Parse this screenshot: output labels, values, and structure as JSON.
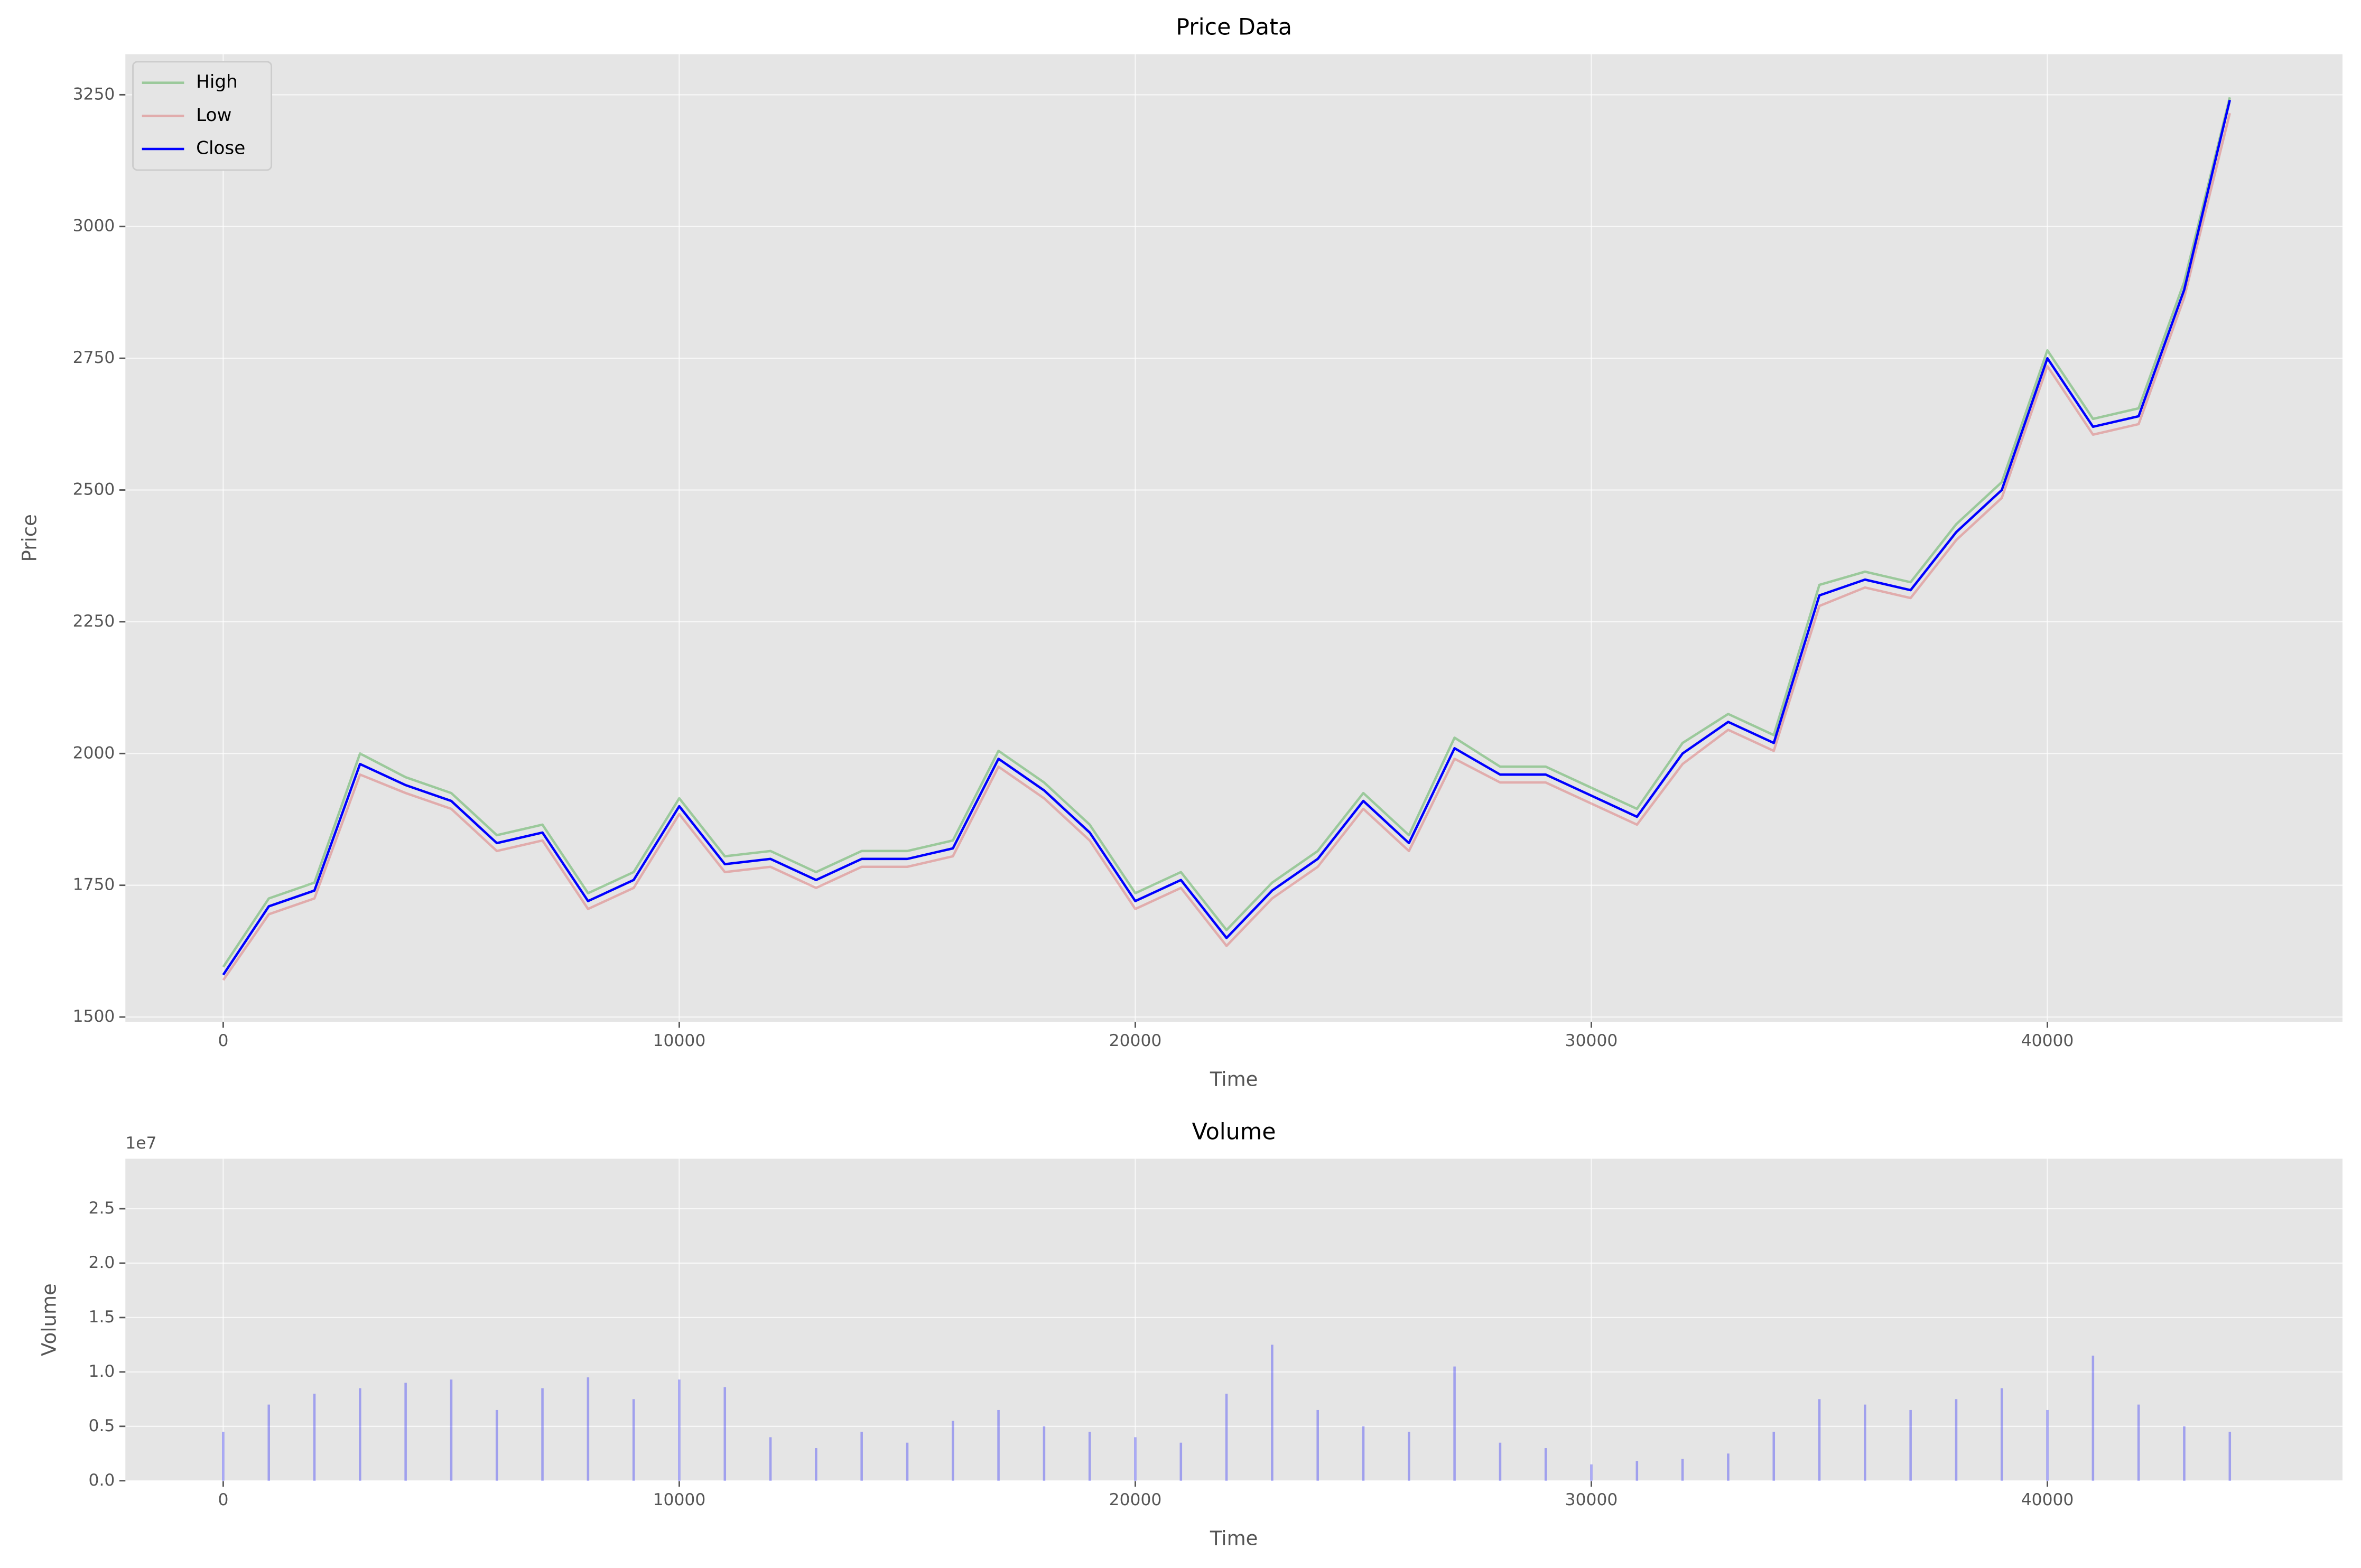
{
  "chart_data": [
    {
      "type": "line",
      "title": "Price Data",
      "xlabel": "Time",
      "ylabel": "Price",
      "x": [
        0,
        1000,
        2000,
        3000,
        4000,
        5000,
        6000,
        7000,
        8000,
        9000,
        10000,
        11000,
        12000,
        13000,
        14000,
        15000,
        16000,
        17000,
        18000,
        19000,
        20000,
        21000,
        22000,
        23000,
        24000,
        25000,
        26000,
        27000,
        28000,
        29000,
        30000,
        31000,
        32000,
        33000,
        34000,
        35000,
        36000,
        37000,
        38000,
        39000,
        40000,
        41000,
        42000,
        43000,
        44000
      ],
      "series": [
        {
          "name": "High",
          "color": "#2ca02c",
          "opacity": 0.4,
          "values": [
            1595,
            1725,
            1755,
            2000,
            1955,
            1925,
            1845,
            1865,
            1735,
            1775,
            1915,
            1805,
            1815,
            1775,
            1815,
            1815,
            1835,
            2005,
            1945,
            1865,
            1735,
            1775,
            1665,
            1755,
            1815,
            1925,
            1845,
            2030,
            1975,
            1975,
            1935,
            1895,
            2020,
            2075,
            2035,
            2320,
            2345,
            2325,
            2435,
            2515,
            2765,
            2635,
            2655,
            2895,
            3245
          ]
        },
        {
          "name": "Low",
          "color": "#d62728",
          "opacity": 0.3,
          "values": [
            1570,
            1695,
            1725,
            1960,
            1925,
            1895,
            1815,
            1835,
            1705,
            1745,
            1885,
            1775,
            1785,
            1745,
            1785,
            1785,
            1805,
            1975,
            1915,
            1835,
            1705,
            1745,
            1635,
            1725,
            1785,
            1895,
            1815,
            1990,
            1945,
            1945,
            1905,
            1865,
            1980,
            2045,
            2005,
            2280,
            2315,
            2295,
            2405,
            2485,
            2735,
            2605,
            2625,
            2865,
            3215
          ]
        },
        {
          "name": "Close",
          "color": "#0000ff",
          "opacity": 1,
          "values": [
            1580,
            1710,
            1740,
            1980,
            1940,
            1910,
            1830,
            1850,
            1720,
            1760,
            1900,
            1790,
            1800,
            1760,
            1800,
            1800,
            1820,
            1990,
            1930,
            1850,
            1720,
            1760,
            1650,
            1740,
            1800,
            1910,
            1830,
            2010,
            1960,
            1960,
            1920,
            1880,
            2000,
            2060,
            2020,
            2300,
            2330,
            2310,
            2420,
            2500,
            2750,
            2620,
            2640,
            2880,
            3240
          ]
        }
      ],
      "xlim": [
        -2145,
        46470
      ],
      "ylim": [
        1491,
        3327
      ],
      "xticks": [
        0,
        10000,
        20000,
        30000,
        40000
      ],
      "yticks": [
        1500,
        1750,
        2000,
        2250,
        2500,
        2750,
        3000,
        3250
      ],
      "grid": true,
      "legend": "upper left"
    },
    {
      "type": "bar",
      "title": "Volume",
      "xlabel": "Time",
      "ylabel": "Volume",
      "offset_text": "1e7",
      "color": "#0000ff",
      "x": [
        0,
        1000,
        2000,
        3000,
        4000,
        5000,
        6000,
        7000,
        8000,
        9000,
        10000,
        11000,
        12000,
        13000,
        14000,
        15000,
        16000,
        17000,
        18000,
        19000,
        20000,
        21000,
        22000,
        23000,
        24000,
        25000,
        26000,
        27000,
        28000,
        29000,
        30000,
        31000,
        32000,
        33000,
        34000,
        35000,
        36000,
        37000,
        38000,
        39000,
        40000,
        41000,
        42000,
        43000,
        44000
      ],
      "values": [
        4500000,
        7000000,
        8000000,
        8500000,
        9000000,
        9300000,
        6500000,
        8500000,
        9500000,
        7500000,
        9300000,
        8600000,
        4000000,
        3000000,
        4500000,
        3500000,
        5500000,
        6500000,
        5000000,
        4500000,
        4000000,
        3500000,
        8000000,
        12500000,
        6500000,
        5000000,
        4500000,
        10500000,
        3500000,
        3000000,
        1500000,
        1800000,
        2000000,
        2500000,
        4500000,
        7500000,
        7000000,
        6500000,
        7500000,
        8500000,
        6500000,
        11500000,
        7000000,
        5000000,
        4500000
      ],
      "xlim": [
        -2145,
        46470
      ],
      "ylim": [
        0,
        29600000
      ],
      "xticks": [
        0,
        10000,
        20000,
        30000,
        40000
      ],
      "yticks": [
        {
          "value": 0,
          "label": "0.0"
        },
        {
          "value": 5000000,
          "label": "0.5"
        },
        {
          "value": 10000000,
          "label": "1.0"
        },
        {
          "value": 15000000,
          "label": "1.5"
        },
        {
          "value": 20000000,
          "label": "2.0"
        },
        {
          "value": 25000000,
          "label": "2.5"
        }
      ],
      "grid": true
    }
  ]
}
